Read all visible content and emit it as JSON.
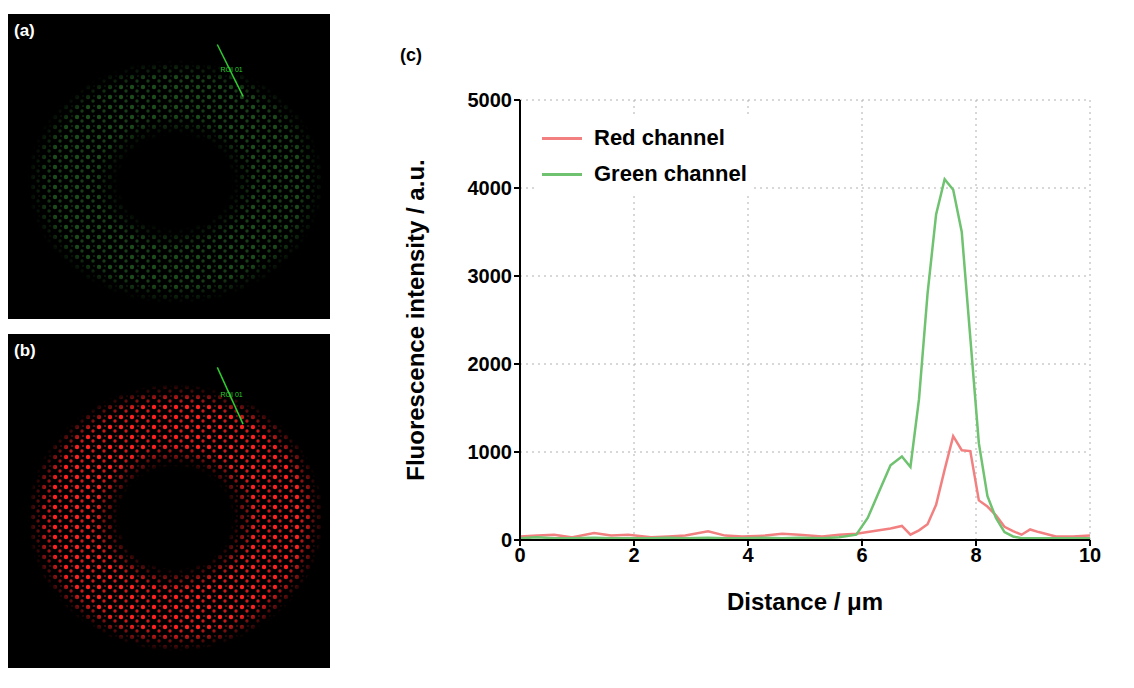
{
  "panels": [
    {
      "label": "(a)",
      "roi_label": "ROI 01",
      "color": "#3fa83f"
    },
    {
      "label": "(b)",
      "roi_label": "ROI 01",
      "color": "#ff2020"
    }
  ],
  "chart_data": {
    "type": "line",
    "label": "(c)",
    "x_label": "Distance / μm",
    "y_label": "Fluorescence intensity / a.u.",
    "x": [
      0,
      0.3,
      0.6,
      0.9,
      1.3,
      1.6,
      1.9,
      2.3,
      2.6,
      2.9,
      3.3,
      3.6,
      3.9,
      4.3,
      4.6,
      4.9,
      5.3,
      5.6,
      5.9,
      6.1,
      6.3,
      6.5,
      6.7,
      6.85,
      7.0,
      7.15,
      7.3,
      7.45,
      7.6,
      7.75,
      7.9,
      8.05,
      8.2,
      8.35,
      8.5,
      8.65,
      8.8,
      8.95,
      9.1,
      9.4,
      9.7,
      10.0
    ],
    "series": [
      {
        "name": "Red channel",
        "color": "#f28080",
        "values": [
          40,
          50,
          60,
          30,
          80,
          50,
          60,
          30,
          40,
          50,
          100,
          50,
          40,
          50,
          70,
          60,
          40,
          60,
          70,
          90,
          110,
          130,
          160,
          60,
          110,
          180,
          400,
          800,
          1180,
          1020,
          1010,
          450,
          380,
          280,
          150,
          100,
          60,
          120,
          90,
          40,
          40,
          50
        ]
      },
      {
        "name": "Green channel",
        "color": "#6fc26f",
        "values": [
          20,
          30,
          20,
          20,
          25,
          20,
          20,
          20,
          25,
          20,
          25,
          20,
          20,
          25,
          20,
          25,
          20,
          30,
          60,
          250,
          550,
          850,
          950,
          830,
          1600,
          2800,
          3700,
          4100,
          3980,
          3500,
          2300,
          1100,
          500,
          250,
          90,
          40,
          20,
          20,
          20,
          20,
          20,
          20
        ]
      }
    ],
    "xlim": [
      0,
      10
    ],
    "xticks": [
      0,
      2,
      4,
      6,
      8,
      10
    ],
    "ylim": [
      0,
      5000
    ],
    "yticks": [
      0,
      1000,
      2000,
      3000,
      4000,
      5000
    ],
    "grid": true,
    "legend": "upper left"
  }
}
